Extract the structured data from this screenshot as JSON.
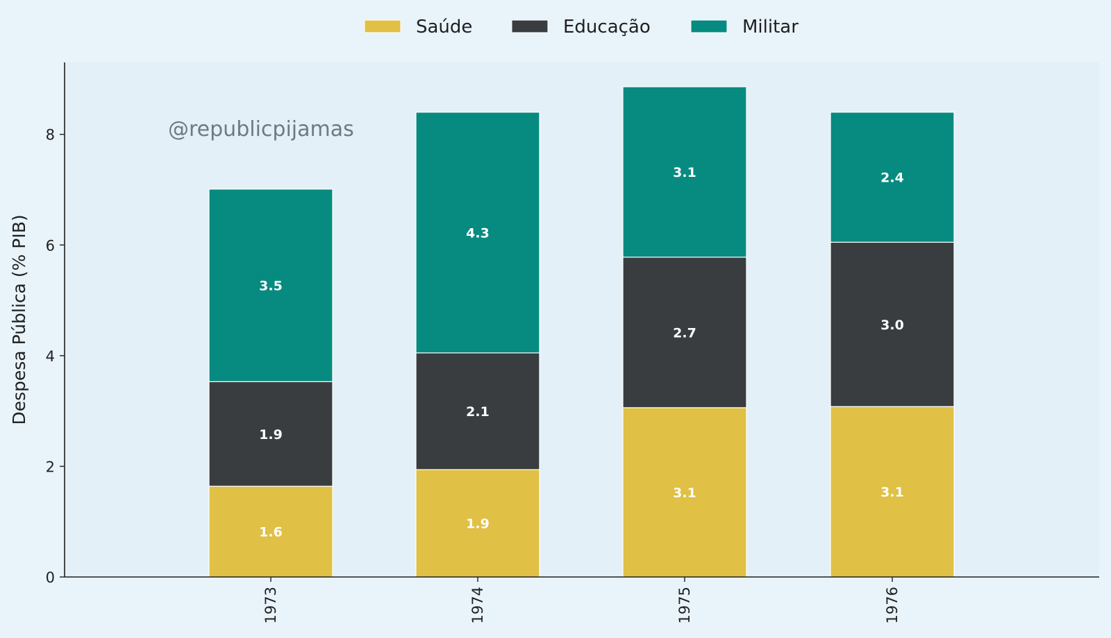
{
  "chart_data": {
    "type": "bar",
    "stacked": true,
    "categories": [
      "1973",
      "1974",
      "1975",
      "1976"
    ],
    "series": [
      {
        "name": "Saúde",
        "color": "#e0c045",
        "values": [
          1.64,
          1.94,
          3.06,
          3.08
        ],
        "labels": [
          "1.6",
          "1.9",
          "3.1",
          "3.1"
        ]
      },
      {
        "name": "Educação",
        "color": "#393d40",
        "values": [
          1.89,
          2.11,
          2.72,
          2.97
        ],
        "labels": [
          "1.9",
          "2.1",
          "2.7",
          "3.0"
        ]
      },
      {
        "name": "Militar",
        "color": "#078b80",
        "values": [
          3.48,
          4.35,
          3.08,
          2.35
        ],
        "labels": [
          "3.5",
          "4.3",
          "3.1",
          "2.4"
        ]
      }
    ],
    "xlabel": "",
    "ylabel": "Despesa Pública (% PIB)",
    "ylim": [
      0,
      9.3
    ],
    "yticks": [
      0,
      2,
      4,
      6,
      8
    ],
    "legend_position": "top-center",
    "grid": false,
    "watermark": "@republicpijamas"
  }
}
